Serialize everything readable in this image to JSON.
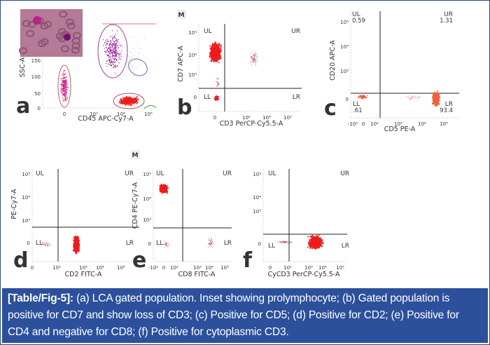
{
  "figure": {
    "panels": [
      {
        "id": "a",
        "letter": "a",
        "xlabel": "CD45 APC-Cy7-A",
        "ylabel": "SSC-A",
        "xticks": [
          "0",
          "10³",
          "10⁴",
          "10⁵"
        ],
        "yticks": [
          "150",
          "100",
          "50",
          "0"
        ],
        "inset": "blood smear micrograph showing prolymphocyte"
      },
      {
        "id": "b",
        "letter": "b",
        "marker": "M",
        "xlabel": "CD3 PerCP-Cy5.5-A",
        "ylabel": "CD7 APC-A",
        "xticks": [
          "0",
          "10³",
          "10⁴",
          "10⁵"
        ],
        "yticks": [
          "10⁵",
          "10⁴",
          "10³",
          "0"
        ],
        "quadrants": {
          "ul": "UL",
          "ur": "UR",
          "ll": "LL",
          "lr": "LR"
        }
      },
      {
        "id": "c",
        "letter": "c",
        "xlabel": "CD5 PE-A",
        "ylabel": "CD20 APC-A",
        "xticks": [
          "-10²",
          "0",
          "10²",
          "10³",
          "10⁴",
          "10⁵"
        ],
        "yticks": [
          "10⁵",
          "10⁴",
          "10³",
          "0"
        ],
        "quadrants": {
          "ul": "UL",
          "ur": "UR",
          "ll": "LL",
          "lr": "LR"
        },
        "percentages": {
          "ul": "0.59",
          "ur": "1.31",
          "ll": ".61",
          "lr": "93.4"
        }
      },
      {
        "id": "d",
        "letter": "d",
        "xlabel": "CD2 FITC-A",
        "ylabel": "PE-Cy7-A",
        "xticks": [
          "0",
          "10²",
          "10³",
          "10⁴",
          "10⁵"
        ],
        "yticks": [
          "10⁵",
          "10⁴",
          "10³",
          "0"
        ],
        "quadrants": {
          "ul": "UL",
          "ur": "UR",
          "ll": "LL",
          "lr": "LR"
        }
      },
      {
        "id": "e",
        "letter": "e",
        "marker": "M",
        "xlabel": "CD8 FITC-A",
        "ylabel": "CD4 PE-Cy7-A",
        "xticks": [
          "-10²",
          "0",
          "10²",
          "10³",
          "10⁴",
          "10⁵"
        ],
        "yticks": [
          "10⁵",
          "10⁴",
          "10³",
          "0"
        ],
        "quadrants": {
          "ul": "UL",
          "ur": "UR",
          "ll": "LL",
          "lr": "LR"
        }
      },
      {
        "id": "f",
        "letter": "f",
        "xlabel": "CyCD3 PerCP-Cy5.5-A",
        "ylabel": "",
        "xticks": [
          "0",
          "10²",
          "10³",
          "10⁴",
          "10⁵"
        ],
        "yticks": [
          "10⁵",
          "10⁴",
          "10³",
          "0"
        ],
        "quadrants": {
          "ul": "UL",
          "ur": "UR",
          "ll": "LL",
          "lr": "LR"
        }
      }
    ],
    "colors": {
      "event_red": "#ee1c1c",
      "event_salmon": "#f0603a",
      "gate_magenta": "#d0208a",
      "gate_purple": "#9a2a9a",
      "caption_bg": "#2c509c",
      "frame": "#2a4a80"
    }
  },
  "caption": {
    "label": "[Table/Fig-5]:",
    "text": " (a) LCA gated population. Inset showing prolymphocyte; (b) Gated population is positive for CD7 and show loss of CD3; (c) Positive for CD5; (d) Positive for CD2; (e) Positive for CD4 and negative for CD8; (f) Positive for cytoplasmic CD3."
  }
}
